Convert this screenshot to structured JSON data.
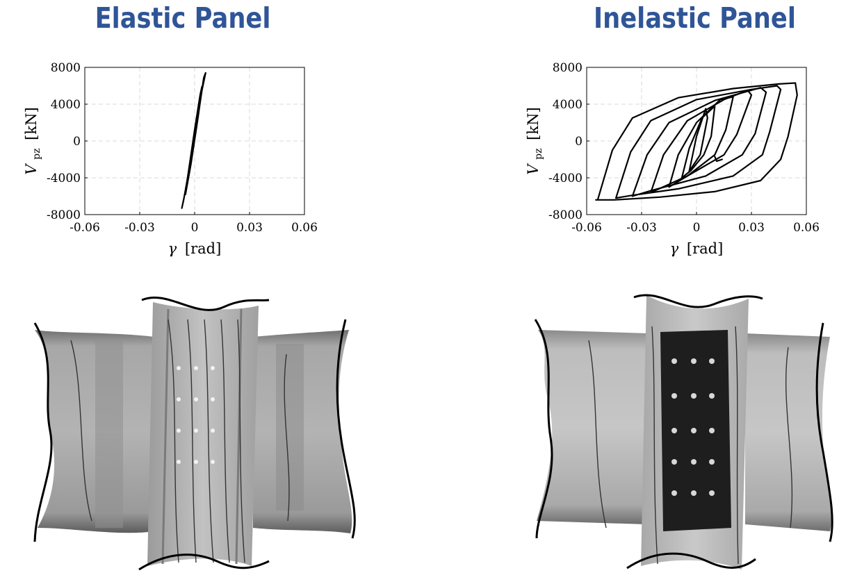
{
  "titles": {
    "left": "Elastic Panel",
    "right": "Inelastic Panel"
  },
  "axes": {
    "x_symbol": "γ",
    "x_unit": "[rad]",
    "y_symbol": "V",
    "y_subscript": "pz",
    "y_unit": "[kN]"
  },
  "colors": {
    "title": "#2f5597",
    "curve": "#000000",
    "grid": "#d9d9d9"
  },
  "chart_data": [
    {
      "type": "line",
      "title": "Elastic Panel",
      "xlabel": "γ [rad]",
      "ylabel": "Vpz [kN]",
      "xlim": [
        -0.06,
        0.06
      ],
      "ylim": [
        -8000,
        8000
      ],
      "xticks": [
        "-0.06",
        "-0.03",
        "0",
        "0.03",
        "0.06"
      ],
      "yticks": [
        "8000",
        "4000",
        "0",
        "-4000",
        "-8000"
      ],
      "grid": true,
      "series": [
        {
          "x": [
            -0.007,
            -0.003,
            0.001,
            0.004,
            0.006,
            0.005,
            0.002,
            -0.002,
            -0.006,
            -0.007
          ],
          "y": [
            -7300,
            -3500,
            1500,
            5500,
            7400,
            6900,
            3000,
            -2000,
            -6400,
            -7300
          ]
        },
        {
          "x": [
            -0.005,
            -0.002,
            0.002,
            0.004,
            0.003,
            0.0,
            -0.004,
            -0.005
          ],
          "y": [
            -5800,
            -2500,
            2800,
            5900,
            5000,
            1200,
            -4200,
            -5800
          ]
        }
      ]
    },
    {
      "type": "line",
      "title": "Inelastic Panel",
      "xlabel": "γ [rad]",
      "ylabel": "Vpz [kN]",
      "xlim": [
        -0.06,
        0.06
      ],
      "ylim": [
        -8000,
        8000
      ],
      "xticks": [
        "-0.06",
        "-0.03",
        "0",
        "0.03",
        "0.06"
      ],
      "yticks": [
        "8000",
        "4000",
        "0",
        "-4000",
        "-8000"
      ],
      "grid": true,
      "series": [
        {
          "x": [
            -0.054,
            -0.046,
            -0.035,
            -0.01,
            0.02,
            0.045,
            0.054,
            0.055,
            0.05,
            0.046,
            0.035,
            0.01,
            -0.02,
            -0.045,
            -0.054,
            -0.055
          ],
          "y": [
            -6400,
            -1000,
            2500,
            4700,
            5700,
            6200,
            6300,
            5000,
            500,
            -2000,
            -4300,
            -5500,
            -6100,
            -6400,
            -6400,
            -6400
          ]
        },
        {
          "x": [
            -0.044,
            -0.036,
            -0.025,
            0.0,
            0.03,
            0.044,
            0.046,
            0.04,
            0.036,
            0.02,
            -0.01,
            -0.035,
            -0.044
          ],
          "y": [
            -6200,
            -1200,
            2200,
            4500,
            5600,
            6000,
            5600,
            1000,
            -1500,
            -3800,
            -5200,
            -5900,
            -6200
          ]
        },
        {
          "x": [
            -0.035,
            -0.027,
            -0.015,
            0.01,
            0.035,
            0.038,
            0.032,
            0.025,
            0.005,
            -0.025,
            -0.035
          ],
          "y": [
            -6000,
            -1500,
            2000,
            4400,
            5800,
            5300,
            800,
            -1500,
            -3800,
            -5400,
            -6000
          ]
        },
        {
          "x": [
            -0.025,
            -0.018,
            -0.005,
            0.015,
            0.028,
            0.03,
            0.022,
            0.015,
            -0.005,
            -0.025
          ],
          "y": [
            -5600,
            -1500,
            2200,
            4500,
            5500,
            5000,
            700,
            -1500,
            -3800,
            -5600
          ]
        },
        {
          "x": [
            -0.015,
            -0.01,
            0.0,
            0.013,
            0.02,
            0.016,
            0.01,
            -0.005,
            -0.015
          ],
          "y": [
            -5000,
            -1500,
            2000,
            4500,
            4800,
            1200,
            -1500,
            -3800,
            -5000
          ]
        },
        {
          "x": [
            -0.008,
            -0.004,
            0.003,
            0.01,
            0.008,
            0.004,
            -0.003,
            -0.008
          ],
          "y": [
            -4000,
            -800,
            2500,
            3800,
            500,
            -1500,
            -3200,
            -4000
          ]
        },
        {
          "x": [
            -0.004,
            0.0,
            0.005,
            0.006,
            0.002,
            -0.004
          ],
          "y": [
            -3300,
            500,
            3500,
            2500,
            -1500,
            -3300
          ]
        },
        {
          "x": [
            0.01,
            0.011,
            0.014
          ],
          "y": [
            -1700,
            -2200,
            -2000
          ]
        }
      ]
    }
  ]
}
